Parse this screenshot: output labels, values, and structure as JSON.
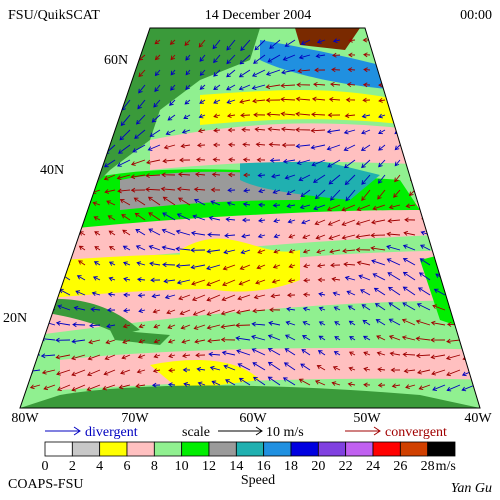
{
  "header": {
    "left": "FSU/QuikSCAT",
    "center": "14 December 2004",
    "right": "00:00"
  },
  "latitude_labels": [
    "60N",
    "40N",
    "20N"
  ],
  "longitude_labels": [
    "80W",
    "70W",
    "60W",
    "50W",
    "40W"
  ],
  "legend": {
    "divergent": "divergent",
    "scale": "scale",
    "scale_value": "10 m/s",
    "convergent": "convergent",
    "colors": [
      "#ffffff",
      "#c8c8c8",
      "#ffff00",
      "#ffc0c0",
      "#90f090",
      "#00ee00",
      "#9a9a9a",
      "#20b0b0",
      "#2090e0",
      "#0000e0",
      "#8040e0",
      "#c060f0",
      "#ff0000",
      "#d04000",
      "#000000"
    ],
    "ticks": [
      "0",
      "2",
      "4",
      "6",
      "8",
      "10",
      "12",
      "14",
      "16",
      "18",
      "20",
      "22",
      "24",
      "26",
      "28"
    ],
    "unit": "m/s",
    "title": "Speed"
  },
  "footer": {
    "left": "COAPS-FSU",
    "right": "Yan Gu"
  }
}
